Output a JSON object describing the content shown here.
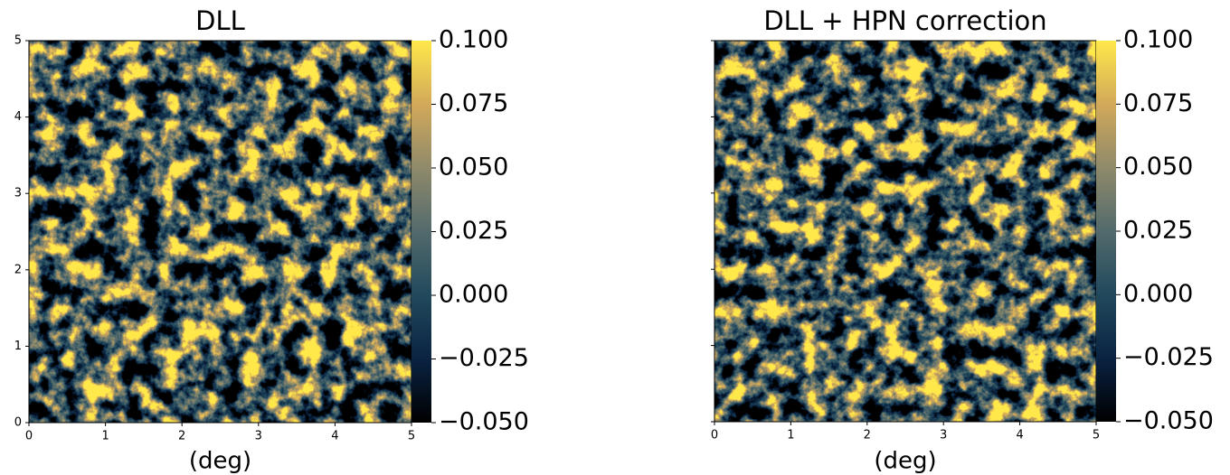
{
  "chart_data": [
    {
      "type": "heatmap",
      "title": "DLL",
      "xlabel": "(deg)",
      "xlim": [
        0,
        5
      ],
      "ylim": [
        0,
        5
      ],
      "xticks": [
        0,
        1,
        2,
        3,
        4,
        5
      ],
      "yticks": [
        0,
        1,
        2,
        3,
        4,
        5
      ],
      "ytick_labels": true,
      "colorbar": {
        "lim": [
          -0.05,
          0.1
        ],
        "colormap": [
          "#000000",
          "#0a2342",
          "#21495c",
          "#536a6c",
          "#8f8a6a",
          "#d2a95a",
          "#ffe84a"
        ],
        "ticks": [
          {
            "value": -0.05,
            "label": "−0.050"
          },
          {
            "value": -0.025,
            "label": "−0.025"
          },
          {
            "value": 0,
            "label": "0.000"
          },
          {
            "value": 0.025,
            "label": "0.025"
          },
          {
            "value": 0.05,
            "label": "0.050"
          },
          {
            "value": 0.075,
            "label": "0.075"
          },
          {
            "value": 0.1,
            "label": "0.100"
          }
        ]
      }
    },
    {
      "type": "heatmap",
      "title": "DLL + HPN correction",
      "xlabel": "(deg)",
      "xlim": [
        0,
        5
      ],
      "ylim": [
        0,
        5
      ],
      "xticks": [
        0,
        1,
        2,
        3,
        4,
        5
      ],
      "yticks": [
        0,
        1,
        2,
        3,
        4,
        5
      ],
      "ytick_labels": false,
      "colorbar": {
        "lim": [
          -0.05,
          0.1
        ],
        "colormap": [
          "#000000",
          "#0a2342",
          "#21495c",
          "#536a6c",
          "#8f8a6a",
          "#d2a95a",
          "#ffe84a"
        ],
        "ticks": [
          {
            "value": -0.05,
            "label": "−0.050"
          },
          {
            "value": -0.025,
            "label": "−0.025"
          },
          {
            "value": 0,
            "label": "0.000"
          },
          {
            "value": 0.025,
            "label": "0.025"
          },
          {
            "value": 0.05,
            "label": "0.050"
          },
          {
            "value": 0.075,
            "label": "0.075"
          },
          {
            "value": 0.1,
            "label": "0.100"
          }
        ]
      }
    }
  ]
}
